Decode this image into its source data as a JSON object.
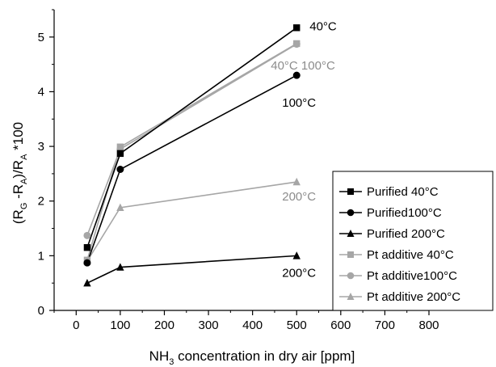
{
  "chart_data": {
    "type": "line",
    "title": "",
    "xlabel": {
      "main": "NH",
      "sub": "3",
      "rest": " concentration in dry air [ppm]"
    },
    "ylabel_parts": [
      "(R",
      "G",
      " -R",
      "A",
      ")/R",
      "A",
      " *100"
    ],
    "xlim": [
      -50,
      800
    ],
    "ylim": [
      0,
      5.5
    ],
    "x_ticks": [
      0,
      100,
      200,
      300,
      400,
      500,
      600,
      700,
      800
    ],
    "y_ticks": [
      0,
      1,
      2,
      3,
      4,
      5
    ],
    "grid": false,
    "legend_position": "bottom-right",
    "series": [
      {
        "name": "Purified 40°C",
        "marker": "square",
        "color": "#000000",
        "x": [
          25,
          100,
          500
        ],
        "y": [
          1.15,
          2.87,
          5.17
        ]
      },
      {
        "name": "Purified100°C",
        "marker": "circle",
        "color": "#000000",
        "x": [
          25,
          100,
          500
        ],
        "y": [
          0.87,
          2.58,
          4.3
        ]
      },
      {
        "name": "Purified 200°C",
        "marker": "triangle",
        "color": "#000000",
        "x": [
          25,
          100,
          500
        ],
        "y": [
          0.5,
          0.79,
          1.0
        ]
      },
      {
        "name": "Pt additive 40°C",
        "marker": "square",
        "color": "#a6a6a6",
        "x": [
          25,
          100,
          500
        ],
        "y": [
          0.92,
          2.99,
          4.88
        ]
      },
      {
        "name": "Pt additive100°C",
        "marker": "circle",
        "color": "#a6a6a6",
        "x": [
          25,
          100,
          500
        ],
        "y": [
          1.37,
          2.95,
          4.87
        ]
      },
      {
        "name": "Pt additive 200°C",
        "marker": "triangle",
        "color": "#a6a6a6",
        "x": [
          25,
          100,
          500
        ],
        "y": [
          0.9,
          1.88,
          2.35
        ]
      }
    ],
    "annotations": [
      {
        "text": "40°C",
        "x": 500,
        "y": 5.17,
        "color": "#000000"
      },
      {
        "text": "40°C 100°C",
        "x": 500,
        "y": 4.88,
        "color": "#8c8c8c"
      },
      {
        "text": "100°C",
        "x": 500,
        "y": 4.3,
        "color": "#000000"
      },
      {
        "text": "200°C",
        "x": 500,
        "y": 2.35,
        "color": "#8c8c8c"
      },
      {
        "text": "200°C",
        "x": 500,
        "y": 1.0,
        "color": "#000000"
      }
    ]
  }
}
